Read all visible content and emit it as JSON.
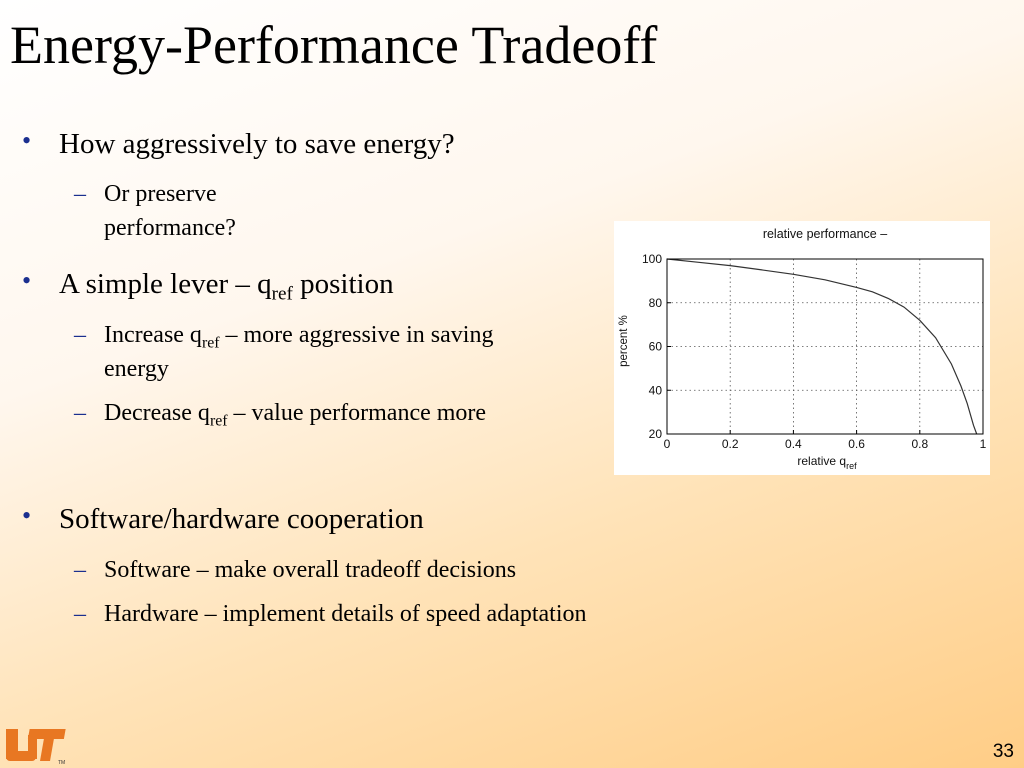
{
  "slide": {
    "title": "Energy-Performance Tradeoff",
    "page_number": "33",
    "logo_text": "UT"
  },
  "bullets": {
    "b1": {
      "text": "How aggressively to save energy?",
      "sub1": "Or preserve performance?"
    },
    "b2": {
      "text_pre": "A simple lever – q",
      "text_sub": "ref",
      "text_post": " position",
      "sub1_pre": "Increase q",
      "sub1_sub": "ref",
      "sub1_post": " – more aggressive in saving",
      "sub1_line2": "energy",
      "sub2_pre": "Decrease q",
      "sub2_sub": "ref",
      "sub2_post": " – value performance more"
    },
    "b3": {
      "text": "Software/hardware cooperation",
      "sub1": "Software – make overall tradeoff decisions",
      "sub2": "Hardware – implement details of speed adaptation"
    }
  },
  "colors": {
    "bullet_marker": "#1b2f8f",
    "background_start": "#ffffff",
    "background_end": "#ffcd86",
    "logo_orange": "#e87722"
  },
  "chart_data": {
    "type": "line",
    "title": "relative performance –",
    "xlabel": "relative q",
    "xlabel_sub": "ref",
    "ylabel": "percent %",
    "xlim": [
      0,
      1
    ],
    "ylim": [
      20,
      100
    ],
    "xticks": [
      0,
      0.2,
      0.4,
      0.6,
      0.8,
      1
    ],
    "xtick_labels": [
      "0",
      "0.2",
      "0.4",
      "0.6",
      "0.8",
      "1"
    ],
    "yticks": [
      20,
      40,
      60,
      80,
      100
    ],
    "ytick_labels": [
      "20",
      "40",
      "60",
      "80",
      "100"
    ],
    "grid": true,
    "x": [
      0,
      0.1,
      0.2,
      0.3,
      0.4,
      0.5,
      0.6,
      0.65,
      0.7,
      0.75,
      0.8,
      0.85,
      0.9,
      0.93,
      0.95,
      0.97,
      0.98
    ],
    "y": [
      100,
      98.5,
      97,
      95,
      93,
      90.5,
      87,
      85,
      82,
      78,
      72,
      64,
      52,
      42,
      34,
      24,
      20
    ]
  }
}
